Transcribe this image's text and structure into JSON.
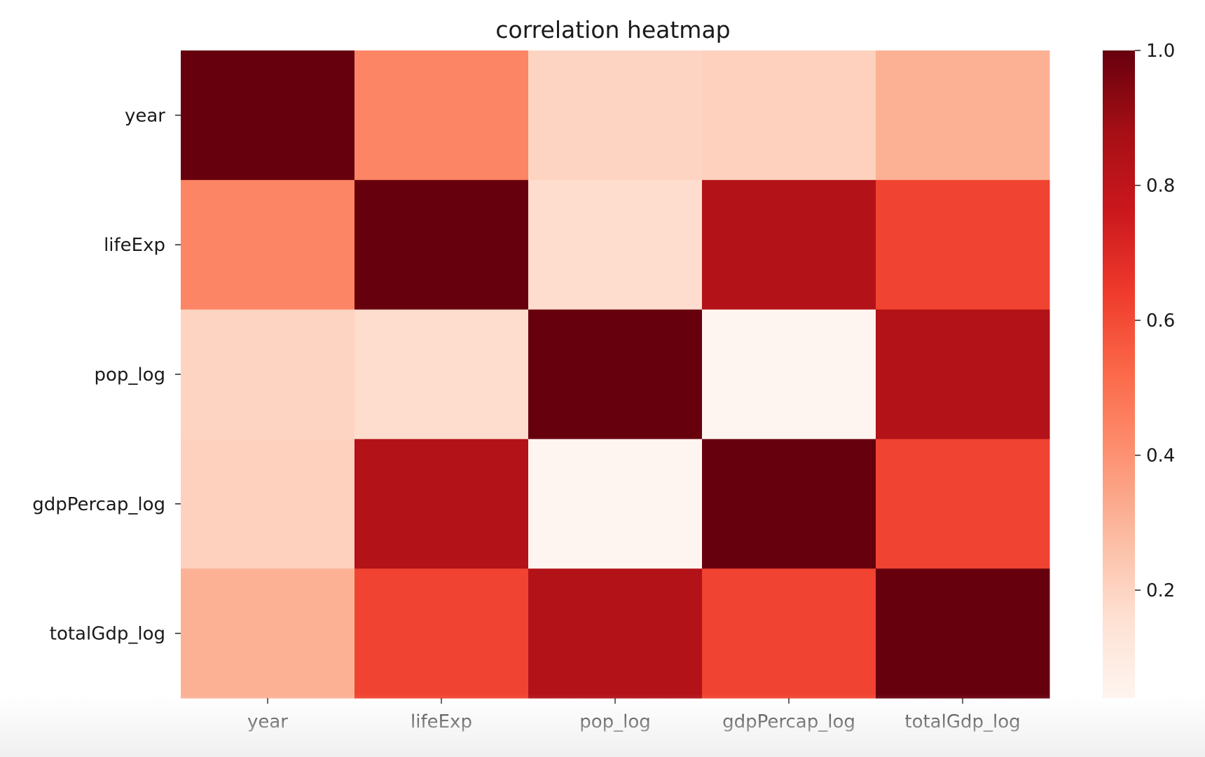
{
  "chart_data": {
    "type": "heatmap",
    "title": "correlation heatmap",
    "xlabel": "",
    "ylabel": "",
    "x_categories": [
      "year",
      "lifeExp",
      "pop_log",
      "gdpPercap_log",
      "totalGdp_log"
    ],
    "y_categories": [
      "year",
      "lifeExp",
      "pop_log",
      "gdpPercap_log",
      "totalGdp_log"
    ],
    "values": [
      [
        1.0,
        0.44,
        0.2,
        0.21,
        0.31
      ],
      [
        0.44,
        1.0,
        0.17,
        0.84,
        0.62
      ],
      [
        0.2,
        0.17,
        1.0,
        0.04,
        0.84
      ],
      [
        0.21,
        0.84,
        0.04,
        1.0,
        0.62
      ],
      [
        0.31,
        0.62,
        0.84,
        0.62,
        1.0
      ]
    ],
    "colorbar": {
      "colormap": "Reds",
      "range": [
        0.04,
        1.0
      ],
      "ticks": [
        0.2,
        0.4,
        0.6,
        0.8,
        1.0
      ],
      "tick_labels": [
        "0.2",
        "0.4",
        "0.6",
        "0.8",
        "1.0"
      ]
    },
    "grid": false,
    "legend": "colorbar-right"
  }
}
